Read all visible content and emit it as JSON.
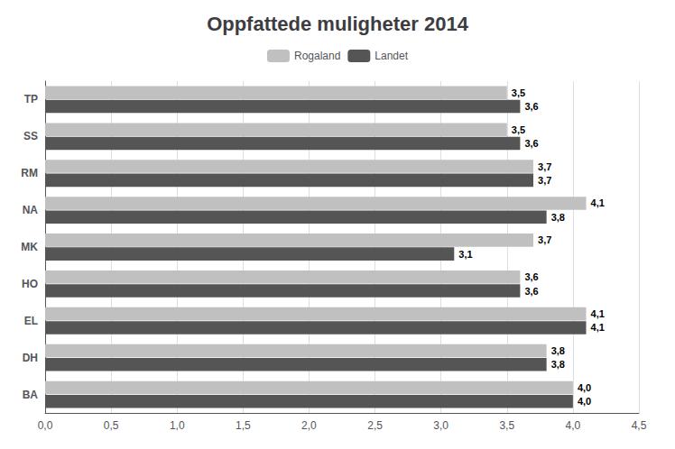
{
  "chart_data": {
    "type": "bar",
    "orientation": "horizontal",
    "title": "Oppfattede muligheter 2014",
    "categories": [
      "BA",
      "DH",
      "EL",
      "HO",
      "MK",
      "NA",
      "RM",
      "SS",
      "TP"
    ],
    "series": [
      {
        "name": "Rogaland",
        "color": "#c0c0c0",
        "values": [
          4.0,
          3.8,
          4.1,
          3.6,
          3.7,
          4.1,
          3.7,
          3.5,
          3.5
        ],
        "value_labels": [
          "4,0",
          "3,8",
          "4,1",
          "3,6",
          "3,7",
          "4,1",
          "3,7",
          "3,5",
          "3,5"
        ]
      },
      {
        "name": "Landet",
        "color": "#555555",
        "values": [
          4.0,
          3.8,
          4.1,
          3.6,
          3.1,
          3.8,
          3.7,
          3.6,
          3.6
        ],
        "value_labels": [
          "4,0",
          "3,8",
          "4,1",
          "3,6",
          "3,1",
          "3,8",
          "3,7",
          "3,6",
          "3,6"
        ]
      }
    ],
    "xlim": [
      0,
      4.5
    ],
    "xticks": [
      {
        "value": 0.0,
        "label": "0,0"
      },
      {
        "value": 0.5,
        "label": "0,5"
      },
      {
        "value": 1.0,
        "label": "1,0"
      },
      {
        "value": 1.5,
        "label": "1,5"
      },
      {
        "value": 2.0,
        "label": "2,0"
      },
      {
        "value": 2.5,
        "label": "2,5"
      },
      {
        "value": 3.0,
        "label": "3,0"
      },
      {
        "value": 3.5,
        "label": "3,5"
      },
      {
        "value": 4.0,
        "label": "4,0"
      },
      {
        "value": 4.5,
        "label": "4,5"
      }
    ],
    "grid": true,
    "legend": "top",
    "data_labels": true
  }
}
